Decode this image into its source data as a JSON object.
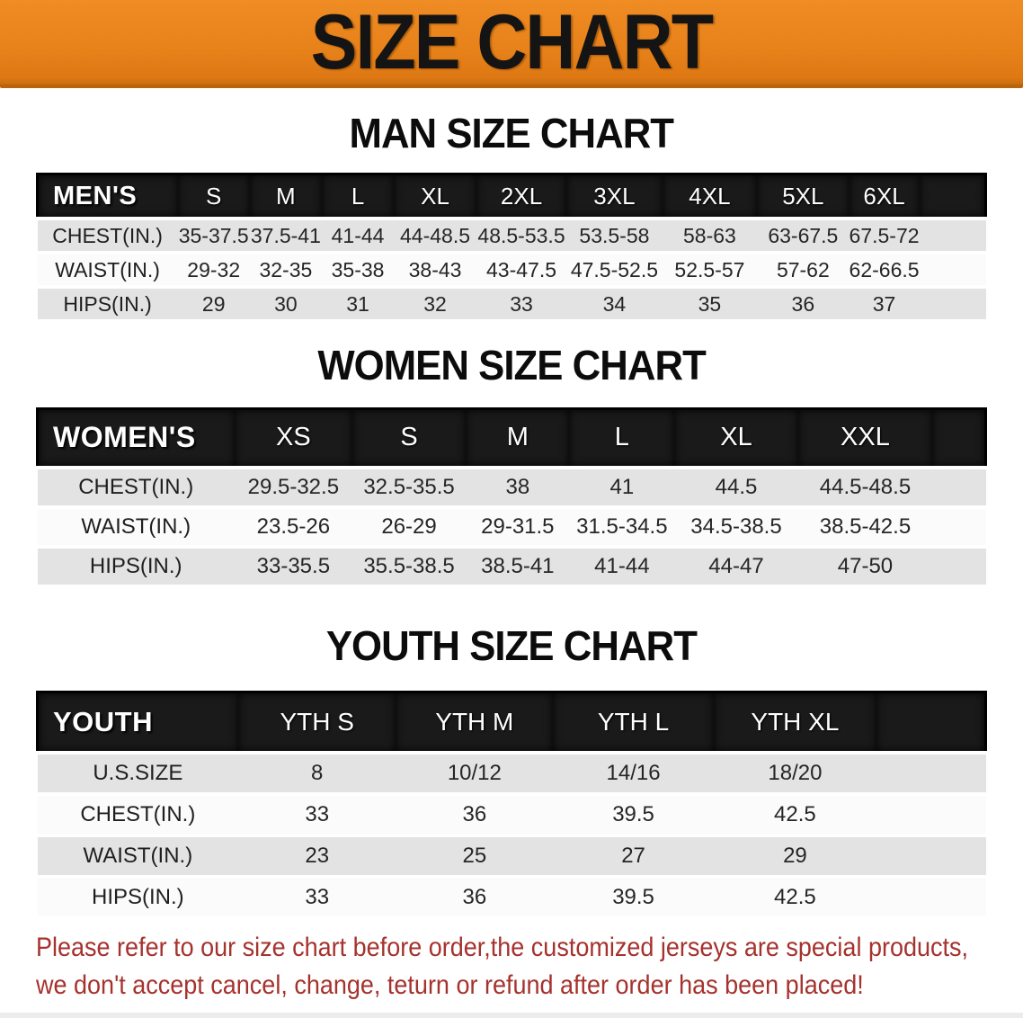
{
  "banner": {
    "title": "SIZE CHART"
  },
  "colors": {
    "banner_orange": "#e8821a",
    "header_bar_black": "#1a1a1a",
    "row_gray": "#e3e3e3",
    "note_red": "#a5322d"
  },
  "sections": [
    {
      "heading": "MAN SIZE CHART",
      "table": {
        "header": [
          "MEN'S",
          "S",
          "M",
          "L",
          "XL",
          "2XL",
          "3XL",
          "4XL",
          "5XL",
          "6XL"
        ],
        "rows": [
          {
            "label": "CHEST(IN.)",
            "values": [
              "35-37.5",
              "37.5-41",
              "41-44",
              "44-48.5",
              "48.5-53.5",
              "53.5-58",
              "58-63",
              "63-67.5",
              "67.5-72"
            ]
          },
          {
            "label": "WAIST(IN.)",
            "values": [
              "29-32",
              "32-35",
              "35-38",
              "38-43",
              "43-47.5",
              "47.5-52.5",
              "52.5-57",
              "57-62",
              "62-66.5"
            ]
          },
          {
            "label": "HIPS(IN.)",
            "values": [
              "29",
              "30",
              "31",
              "32",
              "33",
              "34",
              "35",
              "36",
              "37"
            ]
          }
        ]
      }
    },
    {
      "heading": "WOMEN SIZE CHART",
      "table": {
        "header": [
          "WOMEN'S",
          "XS",
          "S",
          "M",
          "L",
          "XL",
          "XXL"
        ],
        "rows": [
          {
            "label": "CHEST(IN.)",
            "values": [
              "29.5-32.5",
              "32.5-35.5",
              "38",
              "41",
              "44.5",
              "44.5-48.5"
            ]
          },
          {
            "label": "WAIST(IN.)",
            "values": [
              "23.5-26",
              "26-29",
              "29-31.5",
              "31.5-34.5",
              "34.5-38.5",
              "38.5-42.5"
            ]
          },
          {
            "label": "HIPS(IN.)",
            "values": [
              "33-35.5",
              "35.5-38.5",
              "38.5-41",
              "41-44",
              "44-47",
              "47-50"
            ]
          }
        ]
      }
    },
    {
      "heading": "YOUTH SIZE CHART",
      "table": {
        "header": [
          "YOUTH",
          "YTH S",
          "YTH M",
          "YTH L",
          "YTH XL"
        ],
        "rows": [
          {
            "label": "U.S.SIZE",
            "values": [
              "8",
              "10/12",
              "14/16",
              "18/20"
            ]
          },
          {
            "label": "CHEST(IN.)",
            "values": [
              "33",
              "36",
              "39.5",
              "42.5"
            ]
          },
          {
            "label": "WAIST(IN.)",
            "values": [
              "23",
              "25",
              "27",
              "29"
            ]
          },
          {
            "label": "HIPS(IN.)",
            "values": [
              "33",
              "36",
              "39.5",
              "42.5"
            ]
          }
        ]
      }
    }
  ],
  "note": {
    "lines": [
      "Please refer to our size chart before order,the customized jerseys are special products,",
      "we don't accept cancel, change, teturn or refund after order has been placed!"
    ]
  }
}
